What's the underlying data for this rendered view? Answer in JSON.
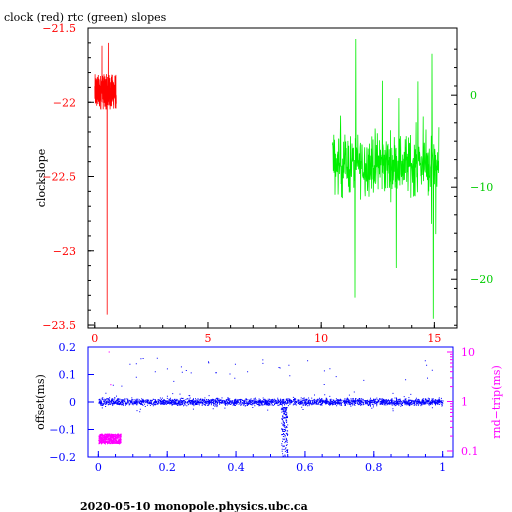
{
  "title": "clock (red) rtc (green) slopes",
  "footer": "2020-05-10 monopole.physics.ubc.ca",
  "colors": {
    "red": "#ff0000",
    "green": "#00ee00",
    "blue": "#0000ff",
    "magenta": "#ff00ff",
    "black": "#000000"
  },
  "chart_data": [
    {
      "type": "line",
      "title": "clock (red) rtc (green) slopes",
      "ylabel": "clockslope",
      "xlim": [
        -0.3,
        16
      ],
      "ylim": [
        -23.52,
        -21.5
      ],
      "y2lim": [
        -25.3,
        7.3
      ],
      "x_ticks": [
        0,
        5,
        10,
        15
      ],
      "y_ticks": [
        -21.5,
        -22,
        -22.5,
        -23,
        -23.5
      ],
      "y_tick_labels": [
        "−21.5",
        "−22",
        "−22.5",
        "−23",
        "−23.5"
      ],
      "y2_ticks": [
        0,
        -10,
        -20
      ],
      "y2_tick_labels": [
        "0",
        "−10",
        "−20"
      ],
      "series": [
        {
          "color": "red",
          "axis": "left",
          "x_range": [
            0.0,
            0.95
          ],
          "mean": -21.93,
          "spread": 0.12,
          "spikes": [
            {
              "x": 0.55,
              "y": -23.43
            },
            {
              "x": 0.32,
              "y": -21.62
            },
            {
              "x": 0.6,
              "y": -21.6
            }
          ]
        },
        {
          "color": "green",
          "axis": "right",
          "x_range": [
            10.5,
            15.2
          ],
          "mean": -7.5,
          "spread": 3.0,
          "spikes": [
            {
              "x": 14.9,
              "y": 4.5
            },
            {
              "x": 14.95,
              "y": -24.3
            },
            {
              "x": 11.5,
              "y": -22.0
            }
          ]
        }
      ]
    },
    {
      "type": "scatter",
      "ylabel": "offset(ms)",
      "y2label": "rnd−trip(ms)",
      "xlim": [
        -0.03,
        1.03
      ],
      "ylim": [
        -0.2,
        0.2
      ],
      "y2lim_log": [
        0.1,
        10
      ],
      "x_ticks": [
        0,
        0.2,
        0.4,
        0.6,
        0.8,
        1
      ],
      "x_tick_labels": [
        "0",
        "0.2",
        "0.4",
        "0.6",
        "0.8",
        "1"
      ],
      "y_ticks": [
        0.2,
        0.1,
        0,
        -0.1,
        -0.2
      ],
      "y_tick_labels": [
        "0.2",
        "0.1",
        "0",
        "−0.1",
        "−0.2"
      ],
      "y2_ticks": [
        10,
        1,
        0.1
      ],
      "y2_tick_labels": [
        "10",
        "1",
        "0.1"
      ],
      "series": [
        {
          "color": "blue",
          "mean": 0.0,
          "spread": 0.012,
          "dip": {
            "x": 0.54,
            "y": -0.2
          }
        },
        {
          "color": "magenta",
          "x_range": [
            0.0,
            0.065
          ],
          "y_range_roundtrip": [
            0.14,
            0.22
          ],
          "outliers": [
            {
              "x": 0.03,
              "y": 10
            },
            {
              "x": 0.035,
              "y": 2.2
            }
          ]
        }
      ]
    }
  ]
}
